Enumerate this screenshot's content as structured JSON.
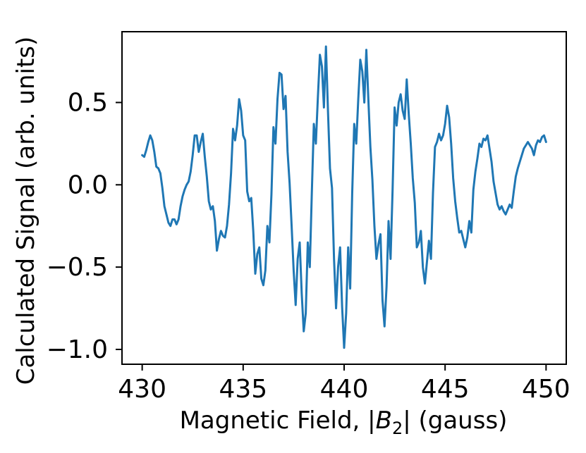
{
  "chart_data": {
    "type": "line",
    "title": "",
    "xlabel": "Magnetic Field, |B2| (gauss)",
    "xlabel_parts": {
      "prefix": "Magnetic Field, |",
      "symbol": "B",
      "subscript": "2",
      "suffix": "| (gauss)"
    },
    "ylabel": "Calculated Signal (arb. units)",
    "xlim": [
      429.0,
      451.0
    ],
    "ylim": [
      -1.09,
      0.93
    ],
    "grid": false,
    "legend": false,
    "x_ticks": [
      430,
      435,
      440,
      445,
      450
    ],
    "x_tick_labels": [
      "430",
      "435",
      "440",
      "445",
      "450"
    ],
    "y_ticks": [
      0.5,
      0.0,
      -0.5,
      -1.0
    ],
    "y_tick_labels": [
      "0.5",
      "0.0",
      "−0.5",
      "−1.0"
    ],
    "colors": {
      "series": "#1f77b4",
      "axes": "#000000",
      "background": "#ffffff"
    },
    "series": [
      {
        "points": [
          [
            430.0,
            0.18
          ],
          [
            430.1,
            0.17
          ],
          [
            430.2,
            0.21
          ],
          [
            430.3,
            0.26
          ],
          [
            430.4,
            0.3
          ],
          [
            430.5,
            0.27
          ],
          [
            430.6,
            0.2
          ],
          [
            430.7,
            0.11
          ],
          [
            430.8,
            0.1
          ],
          [
            430.9,
            0.07
          ],
          [
            431.0,
            -0.02
          ],
          [
            431.1,
            -0.13
          ],
          [
            431.2,
            -0.18
          ],
          [
            431.3,
            -0.23
          ],
          [
            431.4,
            -0.25
          ],
          [
            431.5,
            -0.21
          ],
          [
            431.6,
            -0.21
          ],
          [
            431.7,
            -0.24
          ],
          [
            431.8,
            -0.21
          ],
          [
            431.9,
            -0.13
          ],
          [
            432.0,
            -0.07
          ],
          [
            432.1,
            -0.03
          ],
          [
            432.2,
            0.0
          ],
          [
            432.3,
            0.02
          ],
          [
            432.4,
            0.08
          ],
          [
            432.5,
            0.18
          ],
          [
            432.6,
            0.3
          ],
          [
            432.7,
            0.3
          ],
          [
            432.8,
            0.2
          ],
          [
            432.9,
            0.26
          ],
          [
            433.0,
            0.31
          ],
          [
            433.1,
            0.17
          ],
          [
            433.2,
            0.05
          ],
          [
            433.3,
            -0.1
          ],
          [
            433.4,
            -0.15
          ],
          [
            433.5,
            -0.13
          ],
          [
            433.6,
            -0.22
          ],
          [
            433.7,
            -0.4
          ],
          [
            433.8,
            -0.33
          ],
          [
            433.9,
            -0.28
          ],
          [
            434.0,
            -0.31
          ],
          [
            434.1,
            -0.32
          ],
          [
            434.2,
            -0.25
          ],
          [
            434.3,
            -0.12
          ],
          [
            434.4,
            0.07
          ],
          [
            434.5,
            0.34
          ],
          [
            434.6,
            0.27
          ],
          [
            434.7,
            0.36
          ],
          [
            434.8,
            0.52
          ],
          [
            434.9,
            0.45
          ],
          [
            435.0,
            0.3
          ],
          [
            435.1,
            0.27
          ],
          [
            435.2,
            -0.04
          ],
          [
            435.3,
            -0.1
          ],
          [
            435.4,
            -0.08
          ],
          [
            435.5,
            -0.28
          ],
          [
            435.6,
            -0.54
          ],
          [
            435.7,
            -0.42
          ],
          [
            435.8,
            -0.38
          ],
          [
            435.9,
            -0.57
          ],
          [
            436.0,
            -0.61
          ],
          [
            436.1,
            -0.52
          ],
          [
            436.2,
            -0.25
          ],
          [
            436.3,
            -0.35
          ],
          [
            436.4,
            -0.06
          ],
          [
            436.5,
            0.35
          ],
          [
            436.6,
            0.25
          ],
          [
            436.7,
            0.52
          ],
          [
            436.8,
            0.68
          ],
          [
            436.9,
            0.67
          ],
          [
            437.0,
            0.46
          ],
          [
            437.1,
            0.54
          ],
          [
            437.2,
            0.2
          ],
          [
            437.3,
            0.01
          ],
          [
            437.4,
            -0.25
          ],
          [
            437.5,
            -0.52
          ],
          [
            437.6,
            -0.73
          ],
          [
            437.7,
            -0.45
          ],
          [
            437.8,
            -0.35
          ],
          [
            437.9,
            -0.66
          ],
          [
            438.0,
            -0.89
          ],
          [
            438.1,
            -0.78
          ],
          [
            438.2,
            -0.35
          ],
          [
            438.3,
            -0.5
          ],
          [
            438.4,
            -0.05
          ],
          [
            438.5,
            0.37
          ],
          [
            438.6,
            0.25
          ],
          [
            438.7,
            0.53
          ],
          [
            438.8,
            0.79
          ],
          [
            438.9,
            0.72
          ],
          [
            439.0,
            0.47
          ],
          [
            439.1,
            0.84
          ],
          [
            439.2,
            0.45
          ],
          [
            439.3,
            0.1
          ],
          [
            439.4,
            -0.02
          ],
          [
            439.5,
            -0.45
          ],
          [
            439.6,
            -0.75
          ],
          [
            439.7,
            -0.5
          ],
          [
            439.8,
            -0.38
          ],
          [
            439.9,
            -0.74
          ],
          [
            440.0,
            -0.99
          ],
          [
            440.1,
            -0.78
          ],
          [
            440.2,
            -0.38
          ],
          [
            440.3,
            -0.63
          ],
          [
            440.4,
            -0.05
          ],
          [
            440.5,
            0.37
          ],
          [
            440.6,
            0.25
          ],
          [
            440.7,
            0.52
          ],
          [
            440.8,
            0.76
          ],
          [
            440.9,
            0.69
          ],
          [
            441.0,
            0.5
          ],
          [
            441.1,
            0.82
          ],
          [
            441.2,
            0.52
          ],
          [
            441.3,
            0.23
          ],
          [
            441.4,
            0.03
          ],
          [
            441.5,
            -0.25
          ],
          [
            441.6,
            -0.45
          ],
          [
            441.7,
            -0.36
          ],
          [
            441.8,
            -0.3
          ],
          [
            441.9,
            -0.7
          ],
          [
            442.0,
            -0.86
          ],
          [
            442.1,
            -0.62
          ],
          [
            442.2,
            -0.22
          ],
          [
            442.3,
            -0.45
          ],
          [
            442.4,
            -0.03
          ],
          [
            442.5,
            0.47
          ],
          [
            442.6,
            0.36
          ],
          [
            442.7,
            0.5
          ],
          [
            442.8,
            0.55
          ],
          [
            442.9,
            0.45
          ],
          [
            443.0,
            0.4
          ],
          [
            443.1,
            0.64
          ],
          [
            443.2,
            0.43
          ],
          [
            443.3,
            0.25
          ],
          [
            443.4,
            0.04
          ],
          [
            443.5,
            -0.11
          ],
          [
            443.6,
            -0.38
          ],
          [
            443.7,
            -0.35
          ],
          [
            443.8,
            -0.28
          ],
          [
            443.9,
            -0.5
          ],
          [
            444.0,
            -0.6
          ],
          [
            444.1,
            -0.47
          ],
          [
            444.2,
            -0.34
          ],
          [
            444.3,
            -0.45
          ],
          [
            444.4,
            -0.05
          ],
          [
            444.5,
            0.23
          ],
          [
            444.6,
            0.26
          ],
          [
            444.7,
            0.31
          ],
          [
            444.8,
            0.27
          ],
          [
            444.9,
            0.3
          ],
          [
            445.0,
            0.37
          ],
          [
            445.1,
            0.48
          ],
          [
            445.2,
            0.41
          ],
          [
            445.3,
            0.25
          ],
          [
            445.4,
            0.04
          ],
          [
            445.5,
            -0.1
          ],
          [
            445.6,
            -0.2
          ],
          [
            445.7,
            -0.29
          ],
          [
            445.8,
            -0.28
          ],
          [
            445.9,
            -0.33
          ],
          [
            446.0,
            -0.38
          ],
          [
            446.1,
            -0.32
          ],
          [
            446.2,
            -0.22
          ],
          [
            446.3,
            -0.29
          ],
          [
            446.4,
            -0.03
          ],
          [
            446.5,
            0.08
          ],
          [
            446.6,
            0.16
          ],
          [
            446.7,
            0.25
          ],
          [
            446.8,
            0.23
          ],
          [
            446.9,
            0.28
          ],
          [
            447.0,
            0.27
          ],
          [
            447.1,
            0.3
          ],
          [
            447.2,
            0.22
          ],
          [
            447.3,
            0.14
          ],
          [
            447.4,
            0.02
          ],
          [
            447.5,
            -0.05
          ],
          [
            447.6,
            -0.12
          ],
          [
            447.7,
            -0.15
          ],
          [
            447.8,
            -0.13
          ],
          [
            447.9,
            -0.16
          ],
          [
            448.0,
            -0.18
          ],
          [
            448.1,
            -0.15
          ],
          [
            448.2,
            -0.12
          ],
          [
            448.3,
            -0.14
          ],
          [
            448.4,
            -0.04
          ],
          [
            448.5,
            0.05
          ],
          [
            448.6,
            0.1
          ],
          [
            448.7,
            0.14
          ],
          [
            448.8,
            0.18
          ],
          [
            448.9,
            0.22
          ],
          [
            449.0,
            0.24
          ],
          [
            449.1,
            0.26
          ],
          [
            449.2,
            0.24
          ],
          [
            449.3,
            0.22
          ],
          [
            449.4,
            0.18
          ],
          [
            449.5,
            0.24
          ],
          [
            449.6,
            0.27
          ],
          [
            449.7,
            0.26
          ],
          [
            449.8,
            0.29
          ],
          [
            449.9,
            0.3
          ],
          [
            450.0,
            0.26
          ]
        ]
      }
    ]
  }
}
